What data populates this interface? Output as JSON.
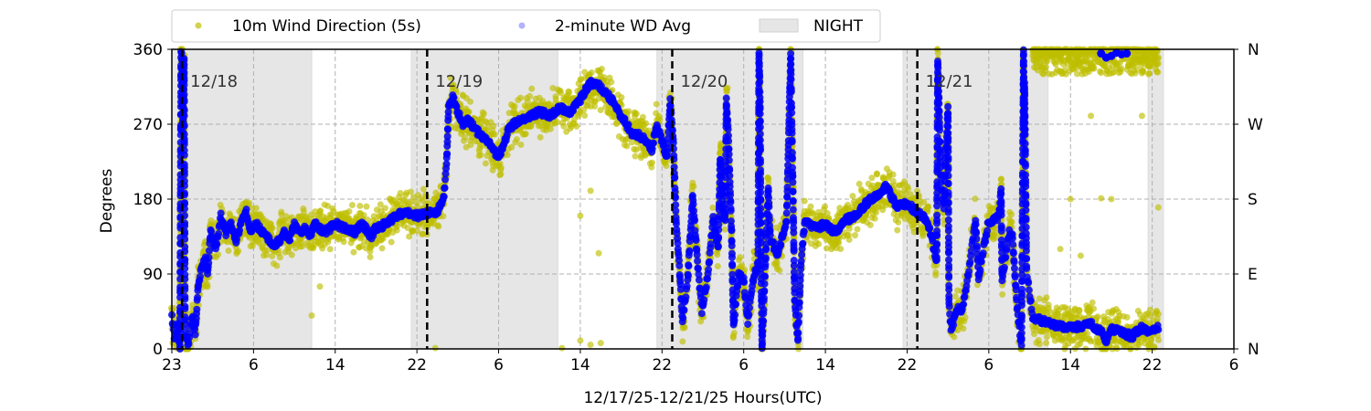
{
  "chart_data": {
    "type": "scatter",
    "xlabel": "12/17/25-12/21/25  Hours(UTC)",
    "ylabel": "Degrees",
    "xlim_hours_from_start": [
      0,
      104
    ],
    "ylim": [
      0,
      360
    ],
    "x_ticks": [
      {
        "h": 0,
        "label": "23"
      },
      {
        "h": 8,
        "label": "6"
      },
      {
        "h": 16,
        "label": "14"
      },
      {
        "h": 24,
        "label": "22"
      },
      {
        "h": 32,
        "label": "6"
      },
      {
        "h": 40,
        "label": "14"
      },
      {
        "h": 48,
        "label": "22"
      },
      {
        "h": 56,
        "label": "6"
      },
      {
        "h": 64,
        "label": "14"
      },
      {
        "h": 72,
        "label": "22"
      },
      {
        "h": 80,
        "label": "6"
      },
      {
        "h": 88,
        "label": "14"
      },
      {
        "h": 96,
        "label": "22"
      },
      {
        "h": 104,
        "label": "6"
      }
    ],
    "y_ticks": [
      {
        "v": 0,
        "label": "0"
      },
      {
        "v": 90,
        "label": "90"
      },
      {
        "v": 180,
        "label": "180"
      },
      {
        "v": 270,
        "label": "270"
      },
      {
        "v": 360,
        "label": "360"
      }
    ],
    "y_ticks_right": [
      {
        "v": 0,
        "label": "N"
      },
      {
        "v": 90,
        "label": "E"
      },
      {
        "v": 180,
        "label": "S"
      },
      {
        "v": 270,
        "label": "W"
      },
      {
        "v": 360,
        "label": "N"
      }
    ],
    "grid": true,
    "legend": {
      "placement": "top",
      "entries": [
        {
          "label": "10m Wind Direction (5s)",
          "color": "#bfbf00"
        },
        {
          "label": "2-minute WD Avg",
          "color": "#0000ff"
        },
        {
          "label": "NIGHT",
          "color": "#e6e6e6"
        }
      ]
    },
    "night_spans_hours": [
      [
        0,
        13.7
      ],
      [
        23.45,
        37.8
      ],
      [
        47.5,
        61.8
      ],
      [
        71.6,
        85.8
      ],
      [
        95.6,
        97.1
      ]
    ],
    "midnight_markers": [
      {
        "h": 1,
        "label": "12/18"
      },
      {
        "h": 25,
        "label": "12/19"
      },
      {
        "h": 49,
        "label": "12/20"
      },
      {
        "h": 73,
        "label": "12/21"
      }
    ],
    "series": [
      {
        "name": "2-minute WD Avg",
        "color": "#0000ff",
        "points": [
          [
            0,
            40
          ],
          [
            0.3,
            10
          ],
          [
            0.6,
            30
          ],
          [
            0.8,
            0
          ],
          [
            0.9,
            355
          ],
          [
            1.0,
            350
          ],
          [
            1.1,
            260
          ],
          [
            1.2,
            350
          ],
          [
            1.3,
            15
          ],
          [
            1.6,
            5
          ],
          [
            2.0,
            40
          ],
          [
            2.3,
            20
          ],
          [
            2.6,
            80
          ],
          [
            3.0,
            100
          ],
          [
            3.3,
            110
          ],
          [
            3.5,
            90
          ],
          [
            3.8,
            140
          ],
          [
            4.3,
            120
          ],
          [
            4.8,
            160
          ],
          [
            5.3,
            140
          ],
          [
            5.8,
            150
          ],
          [
            6.3,
            130
          ],
          [
            6.8,
            150
          ],
          [
            7.3,
            165
          ],
          [
            7.7,
            140
          ],
          [
            8.3,
            150
          ],
          [
            8.8,
            140
          ],
          [
            9.3,
            135
          ],
          [
            10,
            125
          ],
          [
            10.5,
            130
          ],
          [
            11,
            140
          ],
          [
            11.5,
            130
          ],
          [
            12,
            150
          ],
          [
            12.5,
            140
          ],
          [
            13,
            145
          ],
          [
            13.5,
            135
          ],
          [
            14,
            150
          ],
          [
            15,
            140
          ],
          [
            16,
            150
          ],
          [
            17,
            145
          ],
          [
            18,
            140
          ],
          [
            18.5,
            150
          ],
          [
            19,
            145
          ],
          [
            19.5,
            135
          ],
          [
            20,
            145
          ],
          [
            21,
            150
          ],
          [
            22,
            160
          ],
          [
            23,
            165
          ],
          [
            24,
            160
          ],
          [
            25,
            162
          ],
          [
            26,
            165
          ],
          [
            26.6,
            180
          ],
          [
            26.9,
            220
          ],
          [
            27.1,
            290
          ],
          [
            27.5,
            305
          ],
          [
            28,
            285
          ],
          [
            28.5,
            270
          ],
          [
            29,
            275
          ],
          [
            30,
            260
          ],
          [
            31,
            250
          ],
          [
            32,
            230
          ],
          [
            32.5,
            245
          ],
          [
            33,
            265
          ],
          [
            34,
            275
          ],
          [
            35,
            280
          ],
          [
            36,
            285
          ],
          [
            37,
            280
          ],
          [
            38,
            290
          ],
          [
            39,
            285
          ],
          [
            40,
            300
          ],
          [
            41,
            320
          ],
          [
            42,
            315
          ],
          [
            43,
            300
          ],
          [
            44,
            280
          ],
          [
            45,
            260
          ],
          [
            46,
            255
          ],
          [
            47,
            240
          ],
          [
            47.5,
            270
          ],
          [
            48,
            250
          ],
          [
            48.5,
            230
          ],
          [
            48.8,
            300
          ],
          [
            49.1,
            250
          ],
          [
            49.4,
            150
          ],
          [
            49.7,
            98
          ],
          [
            50,
            32
          ],
          [
            50.5,
            80
          ],
          [
            51,
            185
          ],
          [
            51.5,
            100
          ],
          [
            51.9,
            46
          ],
          [
            52.5,
            90
          ],
          [
            53,
            156
          ],
          [
            53.5,
            120
          ],
          [
            53.7,
            229
          ],
          [
            54,
            160
          ],
          [
            54.2,
            156
          ],
          [
            54.3,
            300
          ],
          [
            54.5,
            255
          ],
          [
            54.8,
            145
          ],
          [
            55,
            27
          ],
          [
            55.5,
            90
          ],
          [
            56,
            82
          ],
          [
            56.4,
            32
          ],
          [
            57,
            90
          ],
          [
            57.4,
            101
          ],
          [
            57.5,
            357
          ],
          [
            57.6,
            300
          ],
          [
            57.7,
            101
          ],
          [
            57.8,
            2
          ],
          [
            58.1,
            95
          ],
          [
            58.4,
            192
          ],
          [
            58.6,
            134
          ],
          [
            59.3,
            112
          ],
          [
            60.2,
            156
          ],
          [
            60.6,
            353
          ],
          [
            61,
            54
          ],
          [
            61.3,
            10
          ],
          [
            61.6,
            100
          ],
          [
            62,
            156
          ],
          [
            63,
            145
          ],
          [
            64,
            150
          ],
          [
            65,
            140
          ],
          [
            66,
            155
          ],
          [
            67,
            160
          ],
          [
            68,
            175
          ],
          [
            69,
            185
          ],
          [
            70,
            195
          ],
          [
            71,
            170
          ],
          [
            72,
            175
          ],
          [
            73,
            163
          ],
          [
            74,
            155
          ],
          [
            74.9,
            104
          ],
          [
            75,
            345
          ],
          [
            75.1,
            306
          ],
          [
            75.3,
            200
          ],
          [
            75.6,
            170
          ],
          [
            76,
            291
          ],
          [
            76.1,
            54
          ],
          [
            76.3,
            24
          ],
          [
            77,
            50
          ],
          [
            77.4,
            46
          ],
          [
            78,
            90
          ],
          [
            78.7,
            156
          ],
          [
            79,
            87
          ],
          [
            79.9,
            148
          ],
          [
            81,
            160
          ],
          [
            81.2,
            192
          ],
          [
            81.3,
            82
          ],
          [
            82,
            140
          ],
          [
            82.3,
            137
          ],
          [
            82.8,
            46
          ],
          [
            83.2,
            2
          ],
          [
            83.4,
            357
          ],
          [
            83.45,
            260
          ],
          [
            83.5,
            320
          ],
          [
            83.7,
            93
          ],
          [
            84.3,
            38
          ],
          [
            86,
            30
          ],
          [
            88,
            25
          ],
          [
            90,
            30
          ],
          [
            91,
            20
          ],
          [
            91.5,
            10
          ],
          [
            92,
            25
          ],
          [
            93,
            20
          ],
          [
            94,
            15
          ],
          [
            95,
            25
          ],
          [
            96,
            20
          ],
          [
            96.6,
            25
          ]
        ],
        "isolated_points": [
          [
            91,
            355
          ],
          [
            91.5,
            350
          ],
          [
            92,
            352
          ],
          [
            92.5,
            356
          ],
          [
            93,
            354
          ],
          [
            93.5,
            355
          ]
        ]
      },
      {
        "name": "10m Wind Direction (5s)",
        "color": "#bfbf00",
        "spread_deg": 22,
        "follows": "2-minute WD Avg",
        "upper_band": {
          "h_range": [
            84.3,
            96.6
          ],
          "deg_range": [
            330,
            360
          ]
        },
        "outliers": [
          [
            13.7,
            40
          ],
          [
            14.5,
            75
          ],
          [
            25.8,
            1
          ],
          [
            38.2,
            1
          ],
          [
            40,
            10
          ],
          [
            41,
            5
          ],
          [
            42,
            7
          ],
          [
            41.8,
            115
          ],
          [
            40,
            160
          ],
          [
            41,
            190
          ],
          [
            88,
            180
          ],
          [
            91,
            181
          ],
          [
            92,
            180
          ],
          [
            90,
            280
          ],
          [
            95,
            280
          ],
          [
            96.6,
            170
          ],
          [
            87,
            120
          ],
          [
            89,
            112
          ]
        ]
      }
    ]
  }
}
